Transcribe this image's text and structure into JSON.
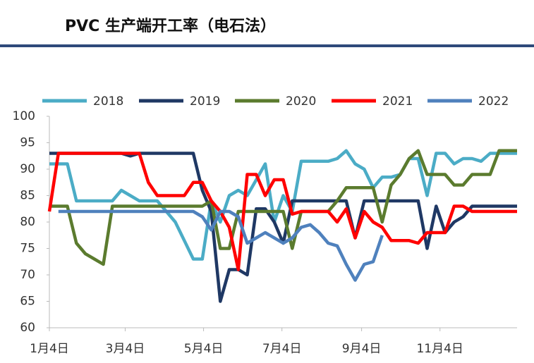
{
  "chart_data": {
    "type": "line",
    "title": "PVC 生产端开工率（电石法）",
    "x": [
      4,
      11,
      18,
      25,
      32,
      39,
      46,
      53,
      60,
      67,
      74,
      81,
      88,
      95,
      102,
      109,
      116,
      123,
      130,
      137,
      144,
      151,
      158,
      165,
      172,
      179,
      186,
      193,
      200,
      207,
      214,
      221,
      228,
      235,
      242,
      249,
      256,
      263,
      270,
      277,
      284,
      291,
      298,
      305,
      312,
      319,
      326,
      333,
      340,
      347,
      354,
      361,
      368
    ],
    "xlim": [
      4,
      368
    ],
    "xticks": [
      {
        "value": 4,
        "label": "1月4日"
      },
      {
        "value": 63,
        "label": "3月4日"
      },
      {
        "value": 124,
        "label": "5月4日"
      },
      {
        "value": 185,
        "label": "7月4日"
      },
      {
        "value": 247,
        "label": "9月4日"
      },
      {
        "value": 308,
        "label": "11月4日"
      }
    ],
    "ylim": [
      60,
      100
    ],
    "yticks": [
      60,
      65,
      70,
      75,
      80,
      85,
      90,
      95,
      100
    ],
    "legend": "top",
    "grid": false,
    "series": [
      {
        "name": "2018",
        "color": "#4bacc6",
        "values": [
          91,
          91,
          91,
          84,
          84,
          84,
          84,
          84,
          86,
          85,
          84,
          84,
          84,
          82,
          80,
          76.5,
          73,
          73,
          84,
          80,
          85,
          86,
          85,
          88,
          91,
          80,
          85,
          82,
          91.5,
          91.5,
          91.5,
          91.5,
          92,
          93.5,
          91,
          90,
          86.5,
          88.5,
          88.5,
          89,
          92,
          92,
          85,
          93,
          93,
          91,
          92,
          92,
          91.5,
          93,
          93,
          93,
          93
        ]
      },
      {
        "name": "2019",
        "color": "#1f3864",
        "values": [
          93,
          93,
          93,
          93,
          93,
          93,
          93,
          93,
          93,
          92.5,
          93,
          93,
          93,
          93,
          93,
          93,
          93,
          86,
          82,
          65,
          71,
          71,
          70,
          82.5,
          82.5,
          80,
          76,
          84,
          84,
          84,
          84,
          84,
          84,
          84,
          77,
          84,
          84,
          84,
          84,
          84,
          84,
          84,
          75,
          83,
          78,
          80,
          81,
          83,
          83,
          83,
          83,
          83,
          83
        ]
      },
      {
        "name": "2020",
        "color": "#5b7b2e",
        "values": [
          83,
          83,
          83,
          76,
          74,
          73,
          72,
          83,
          83,
          83,
          83,
          83,
          83,
          83,
          83,
          83,
          83,
          83,
          84,
          75,
          75,
          82,
          82,
          82,
          82,
          82,
          82,
          75,
          82,
          82,
          82,
          82,
          84,
          86.5,
          86.5,
          86.5,
          86.5,
          80,
          87,
          89,
          92,
          93.5,
          89,
          89,
          89,
          87,
          87,
          89,
          89,
          89,
          93.5,
          93.5,
          93.5
        ]
      },
      {
        "name": "2021",
        "color": "#ff0000",
        "values": [
          82,
          93,
          93,
          93,
          93,
          93,
          93,
          93,
          93,
          93,
          93,
          87.5,
          85,
          85,
          85,
          85,
          87.5,
          87.5,
          84,
          82,
          79,
          71,
          89,
          89,
          85,
          88,
          88,
          81.5,
          82,
          82,
          82,
          82,
          80,
          82.5,
          77,
          82,
          80,
          79,
          76.5,
          76.5,
          76.5,
          76,
          78,
          78,
          78,
          83,
          83,
          82,
          82,
          82,
          82,
          82,
          82
        ]
      },
      {
        "name": "2022",
        "color": "#4f81bd",
        "values": [
          null,
          82,
          82,
          82,
          82,
          82,
          82,
          82,
          82,
          82,
          82,
          82,
          82,
          82,
          82,
          82,
          82,
          81,
          78.5,
          82,
          82,
          81,
          76,
          77,
          78,
          77,
          76,
          77,
          79,
          79.5,
          78,
          76,
          75.5,
          72,
          69,
          72,
          72.5,
          77.5,
          null,
          null,
          null,
          null,
          null,
          null,
          null,
          null,
          null,
          null,
          null,
          null,
          null,
          null,
          null
        ]
      }
    ]
  }
}
